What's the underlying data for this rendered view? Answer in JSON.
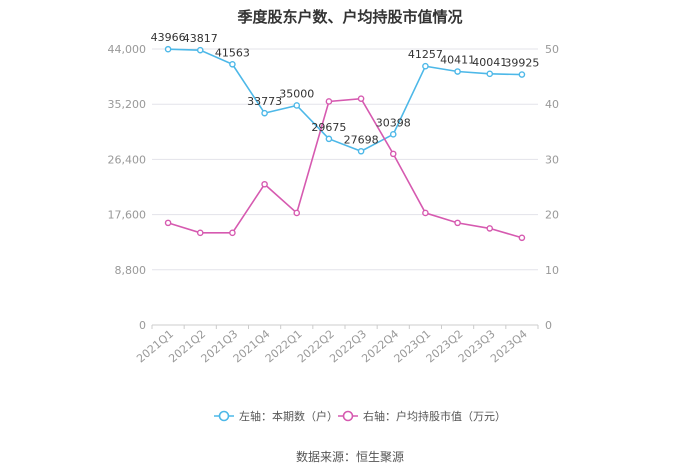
{
  "title": "季度股东户数、户均持股市值情况",
  "source": "数据来源：恒生聚源",
  "colors": {
    "left_series": "#4db8e8",
    "right_series": "#d65ab0",
    "grid": "#e3e3ea",
    "axis_text": "#999999"
  },
  "chart_data": {
    "type": "line",
    "title": "季度股东户数、户均持股市值情况",
    "categories": [
      "2021Q1",
      "2021Q2",
      "2021Q3",
      "2021Q4",
      "2022Q1",
      "2022Q2",
      "2022Q3",
      "2022Q4",
      "2023Q1",
      "2023Q2",
      "2023Q3",
      "2023Q4"
    ],
    "left_axis": {
      "ticks": [
        "0",
        "8,800",
        "17,600",
        "26,400",
        "35,200",
        "44,000"
      ],
      "range": [
        0,
        44000
      ]
    },
    "right_axis": {
      "ticks": [
        "0",
        "10",
        "20",
        "30",
        "40",
        "50"
      ],
      "range": [
        0,
        50
      ]
    },
    "grid": true,
    "legend_position": "bottom",
    "series": [
      {
        "name": "左轴：本期数（户）",
        "axis": "left",
        "values": [
          43966,
          43817,
          41563,
          33773,
          35000,
          29675,
          27698,
          30398,
          41257,
          40411,
          40041,
          39925
        ],
        "labels": [
          "43966",
          "43817",
          "41563",
          "33773",
          "35000",
          "29675",
          "27698",
          "30398",
          "41257",
          "40411",
          "40041",
          "39925"
        ]
      },
      {
        "name": "右轴：户均持股市值（万元）",
        "axis": "right",
        "values": [
          18.5,
          16.7,
          16.7,
          25.5,
          20.3,
          40.5,
          41.0,
          31.0,
          20.3,
          18.5,
          17.5,
          15.8
        ]
      }
    ]
  }
}
